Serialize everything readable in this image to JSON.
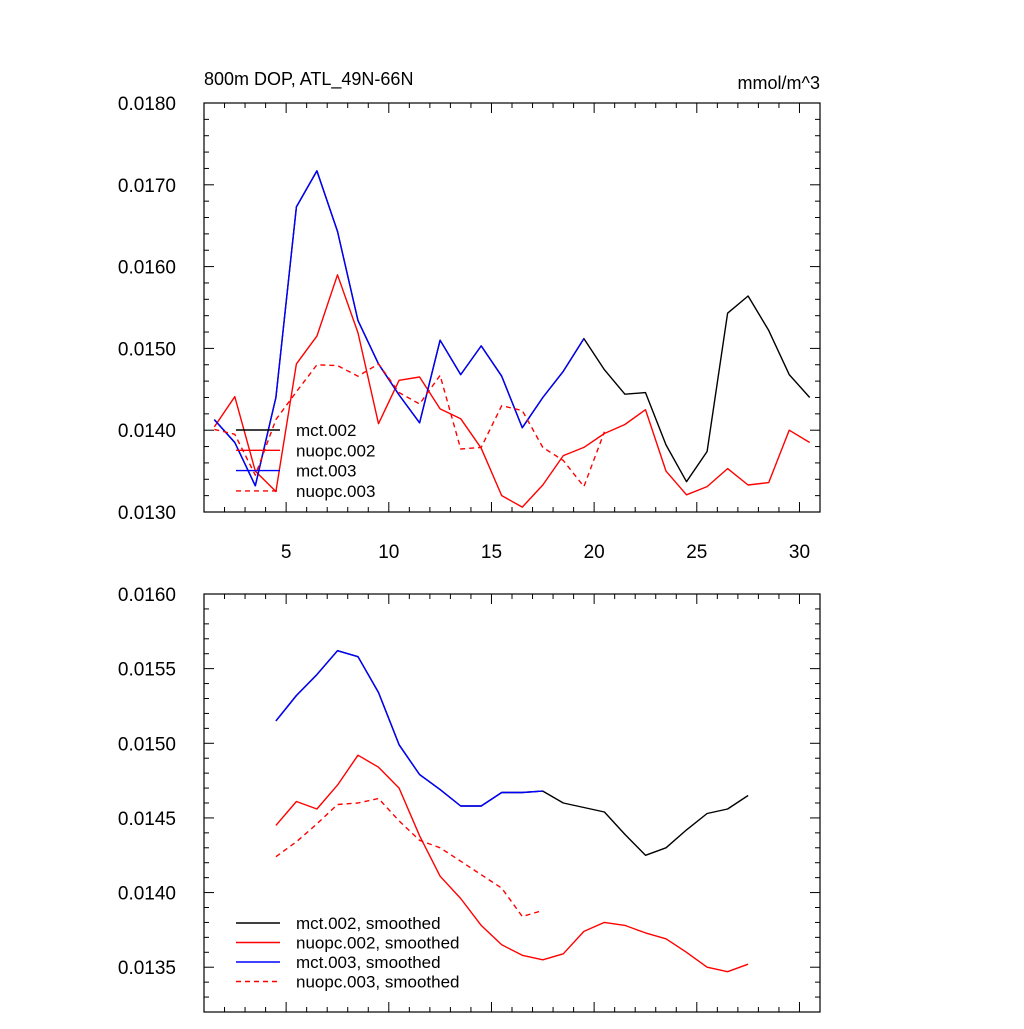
{
  "chart_data": [
    {
      "type": "line",
      "title": "800m DOP, ATL_49N-66N",
      "units": "mmol/m^3",
      "xlabel": "",
      "ylabel": "",
      "xlim": [
        1,
        31
      ],
      "ylim": [
        0.013,
        0.018
      ],
      "x_ticks": [
        5,
        10,
        15,
        20,
        25,
        30
      ],
      "y_ticks": [
        "0.0130",
        "0.0140",
        "0.0150",
        "0.0160",
        "0.0170",
        "0.0180"
      ],
      "grid": false,
      "legend": "bottom-left",
      "series": [
        {
          "name": "mct.002",
          "color": "#000000",
          "dash": "solid",
          "x": [
            1.5,
            2.5,
            3.5,
            4.5,
            5.5,
            6.5,
            7.5,
            8.5,
            9.5,
            10.5,
            11.5,
            12.5,
            13.5,
            14.5,
            15.5,
            16.5,
            17.5,
            18.5,
            19.5,
            20.5,
            21.5,
            22.5,
            23.5,
            24.5,
            25.5,
            26.5,
            27.5,
            28.5,
            29.5,
            30.5
          ],
          "values": [
            0.01413,
            0.01385,
            0.01332,
            0.0144,
            0.01673,
            0.01717,
            0.01643,
            0.01534,
            0.01481,
            0.01443,
            0.01409,
            0.0151,
            0.01468,
            0.01503,
            0.01466,
            0.01403,
            0.0144,
            0.01472,
            0.01512,
            0.01474,
            0.01444,
            0.01446,
            0.01382,
            0.01337,
            0.01374,
            0.01543,
            0.01564,
            0.01522,
            0.01468,
            0.0144
          ]
        },
        {
          "name": "nuopc.002",
          "color": "#ff0000",
          "dash": "solid",
          "x": [
            1.5,
            2.5,
            3.5,
            4.5,
            5.5,
            6.5,
            7.5,
            8.5,
            9.5,
            10.5,
            11.5,
            12.5,
            13.5,
            14.5,
            15.5,
            16.5,
            17.5,
            18.5,
            19.5,
            20.5,
            21.5,
            22.5,
            23.5,
            24.5,
            25.5,
            26.5,
            27.5,
            28.5,
            29.5,
            30.5
          ],
          "values": [
            0.01404,
            0.01441,
            0.0135,
            0.01325,
            0.01481,
            0.01515,
            0.0159,
            0.01519,
            0.01408,
            0.01461,
            0.01465,
            0.01426,
            0.01414,
            0.01378,
            0.0132,
            0.01306,
            0.01333,
            0.01369,
            0.01379,
            0.01396,
            0.01407,
            0.01425,
            0.0135,
            0.01321,
            0.01331,
            0.01353,
            0.01333,
            0.01336,
            0.014,
            0.01385
          ]
        },
        {
          "name": "mct.003",
          "color": "#0000ff",
          "dash": "solid",
          "x": [
            1.5,
            2.5,
            3.5,
            4.5,
            5.5,
            6.5,
            7.5,
            8.5,
            9.5,
            10.5,
            11.5,
            12.5,
            13.5,
            14.5,
            15.5,
            16.5,
            17.5,
            18.5,
            19.5
          ],
          "values": [
            0.01413,
            0.01385,
            0.01332,
            0.0144,
            0.01673,
            0.01717,
            0.01643,
            0.01534,
            0.01481,
            0.01443,
            0.01409,
            0.0151,
            0.01468,
            0.01503,
            0.01466,
            0.01403,
            0.0144,
            0.01472,
            0.01512
          ]
        },
        {
          "name": "nuopc.003",
          "color": "#ff0000",
          "dash": "dashed",
          "x": [
            1.5,
            2.5,
            3.5,
            4.5,
            5.5,
            6.5,
            7.5,
            8.5,
            9.5,
            10.5,
            11.5,
            12.5,
            13.5,
            14.5,
            15.5,
            16.5,
            17.5,
            18.5,
            19.5,
            20.5
          ],
          "values": [
            0.01401,
            0.01395,
            0.01345,
            0.01413,
            0.01447,
            0.0148,
            0.01479,
            0.01466,
            0.01481,
            0.01446,
            0.01432,
            0.01467,
            0.01377,
            0.01379,
            0.0143,
            0.01424,
            0.01379,
            0.01363,
            0.01331,
            0.01398
          ]
        }
      ]
    },
    {
      "type": "line",
      "title": "",
      "xlabel": "",
      "ylabel": "",
      "xlim": [
        1,
        31
      ],
      "ylim": [
        0.0132,
        0.016
      ],
      "x_ticks": [
        5,
        10,
        15,
        20,
        25,
        30
      ],
      "y_ticks": [
        "0.0135",
        "0.0140",
        "0.0145",
        "0.0150",
        "0.0155",
        "0.0160"
      ],
      "grid": false,
      "legend": "bottom-left",
      "series": [
        {
          "name": "mct.002, smoothed",
          "color": "#000000",
          "dash": "solid",
          "x": [
            4.5,
            5.5,
            6.5,
            7.5,
            8.5,
            9.5,
            10.5,
            11.5,
            12.5,
            13.5,
            14.5,
            15.5,
            16.5,
            17.5,
            18.5,
            19.5,
            20.5,
            21.5,
            22.5,
            23.5,
            24.5,
            25.5,
            26.5,
            27.5
          ],
          "values": [
            0.01515,
            0.01532,
            0.01546,
            0.01562,
            0.01558,
            0.01534,
            0.01499,
            0.01479,
            0.01469,
            0.01458,
            0.01458,
            0.01467,
            0.01467,
            0.01468,
            0.0146,
            0.01457,
            0.01454,
            0.01439,
            0.01425,
            0.0143,
            0.01442,
            0.01453,
            0.01456,
            0.01465
          ]
        },
        {
          "name": "nuopc.002, smoothed",
          "color": "#ff0000",
          "dash": "solid",
          "x": [
            4.5,
            5.5,
            6.5,
            7.5,
            8.5,
            9.5,
            10.5,
            11.5,
            12.5,
            13.5,
            14.5,
            15.5,
            16.5,
            17.5,
            18.5,
            19.5,
            20.5,
            21.5,
            22.5,
            23.5,
            24.5,
            25.5,
            26.5,
            27.5
          ],
          "values": [
            0.01445,
            0.01461,
            0.01456,
            0.01472,
            0.01492,
            0.01484,
            0.0147,
            0.01438,
            0.01411,
            0.01396,
            0.01378,
            0.01365,
            0.01358,
            0.01355,
            0.01359,
            0.01374,
            0.0138,
            0.01378,
            0.01373,
            0.01369,
            0.0136,
            0.0135,
            0.01347,
            0.01352
          ]
        },
        {
          "name": "mct.003, smoothed",
          "color": "#0000ff",
          "dash": "solid",
          "x": [
            4.5,
            5.5,
            6.5,
            7.5,
            8.5,
            9.5,
            10.5,
            11.5,
            12.5,
            13.5,
            14.5,
            15.5,
            16.5,
            17.5
          ],
          "values": [
            0.01515,
            0.01532,
            0.01546,
            0.01562,
            0.01558,
            0.01534,
            0.01499,
            0.01479,
            0.01469,
            0.01458,
            0.01458,
            0.01467,
            0.01467,
            0.01468
          ]
        },
        {
          "name": "nuopc.003, smoothed",
          "color": "#ff0000",
          "dash": "dashed",
          "x": [
            4.5,
            5.5,
            6.5,
            7.5,
            8.5,
            9.5,
            10.5,
            11.5,
            12.5,
            13.5,
            14.5,
            15.5,
            16.5,
            17.5
          ],
          "values": [
            0.01424,
            0.01434,
            0.01446,
            0.01459,
            0.0146,
            0.01463,
            0.01448,
            0.01435,
            0.0143,
            0.01421,
            0.01412,
            0.01403,
            0.01384,
            0.01388
          ]
        }
      ]
    }
  ]
}
